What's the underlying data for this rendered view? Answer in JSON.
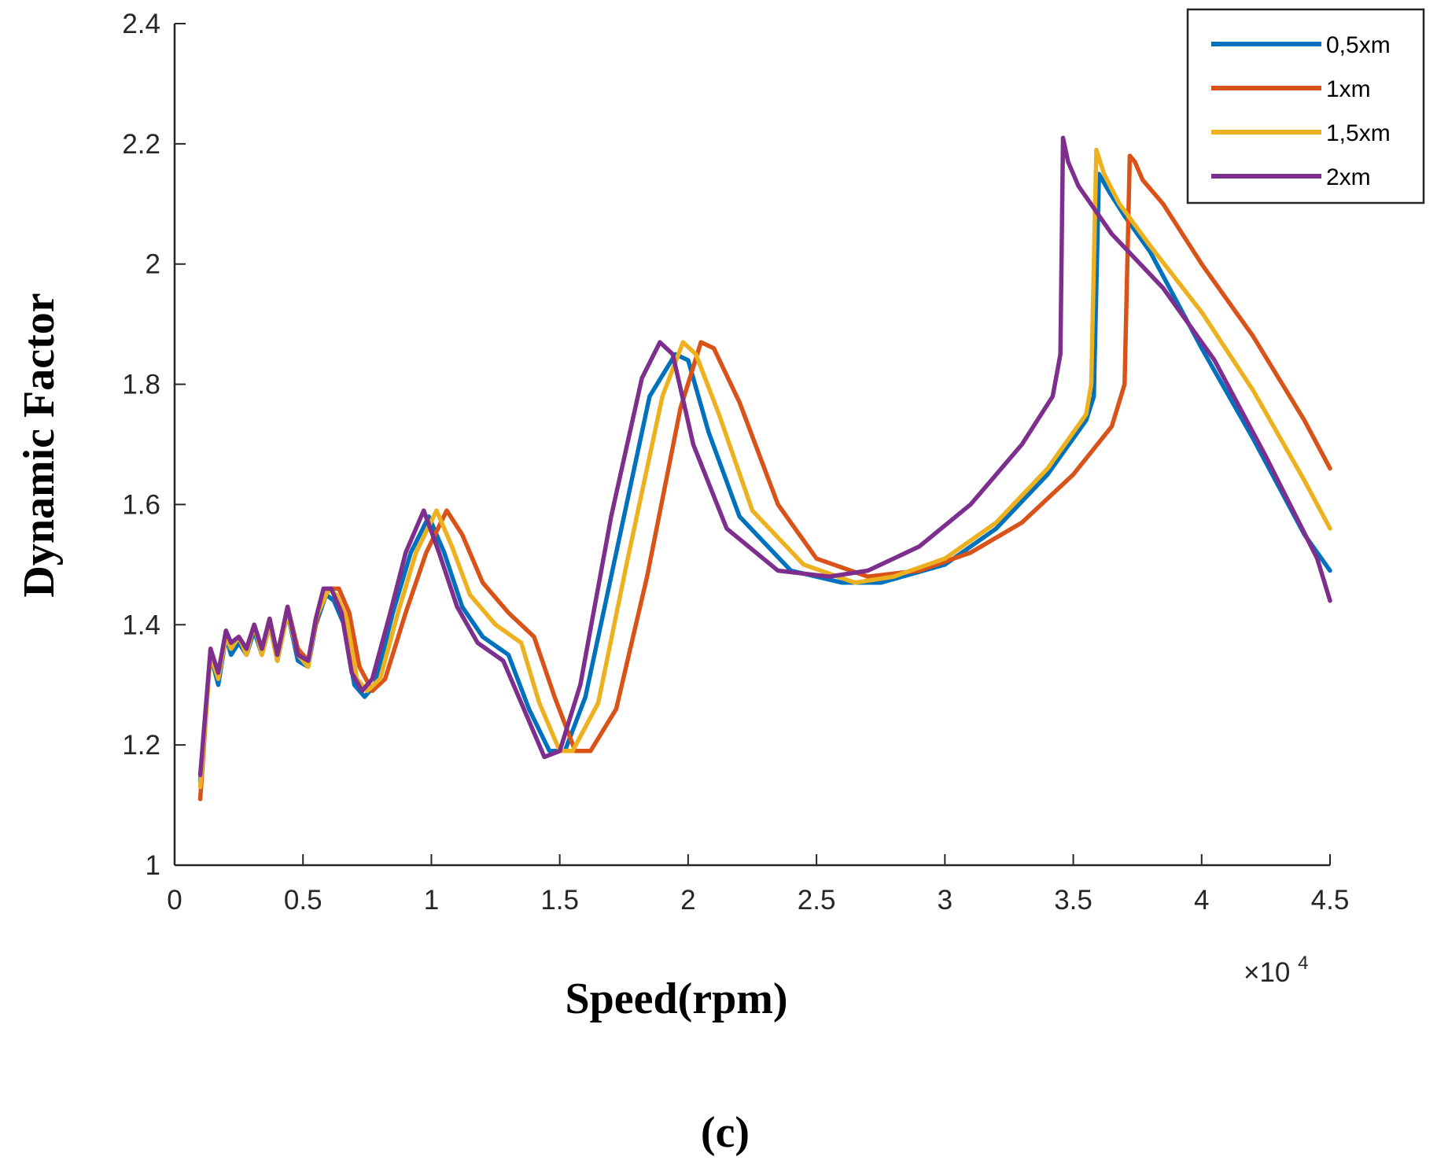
{
  "chart_data": {
    "type": "line",
    "title": "",
    "xlabel": "Speed(rpm)",
    "ylabel": "Dynamic Factor",
    "x_multiplier": "×10",
    "x_multiplier_exp": "4",
    "panel_label": "(c)",
    "xlim": [
      0,
      4.5
    ],
    "ylim": [
      1,
      2.4
    ],
    "xticks": [
      0,
      0.5,
      1,
      1.5,
      2,
      2.5,
      3,
      3.5,
      4,
      4.5
    ],
    "xtick_labels": [
      "0",
      "0.5",
      "1",
      "1.5",
      "2",
      "2.5",
      "3",
      "3.5",
      "4",
      "4.5"
    ],
    "yticks": [
      1,
      1.2,
      1.4,
      1.6,
      1.8,
      2,
      2.2,
      2.4
    ],
    "ytick_labels": [
      "1",
      "1.2",
      "1.4",
      "1.6",
      "1.8",
      "2",
      "2.2",
      "2.4"
    ],
    "grid": false,
    "legend_position": "top-right",
    "series": [
      {
        "name": "0,5xm",
        "color": "#0072BD",
        "x": [
          0.1,
          0.14,
          0.17,
          0.2,
          0.22,
          0.25,
          0.28,
          0.31,
          0.34,
          0.37,
          0.4,
          0.44,
          0.48,
          0.52,
          0.55,
          0.59,
          0.62,
          0.66,
          0.7,
          0.74,
          0.78,
          0.85,
          0.92,
          0.99,
          1.05,
          1.12,
          1.2,
          1.3,
          1.38,
          1.46,
          1.52,
          1.6,
          1.72,
          1.85,
          1.95,
          2.0,
          2.08,
          2.2,
          2.4,
          2.6,
          2.75,
          3.0,
          3.2,
          3.4,
          3.55,
          3.58,
          3.6,
          3.64,
          3.7,
          3.8,
          4.0,
          4.2,
          4.4,
          4.5
        ],
        "y": [
          1.14,
          1.35,
          1.3,
          1.38,
          1.35,
          1.37,
          1.35,
          1.39,
          1.35,
          1.4,
          1.34,
          1.42,
          1.34,
          1.33,
          1.4,
          1.45,
          1.44,
          1.4,
          1.3,
          1.28,
          1.3,
          1.42,
          1.52,
          1.58,
          1.52,
          1.43,
          1.38,
          1.35,
          1.26,
          1.19,
          1.19,
          1.28,
          1.52,
          1.78,
          1.85,
          1.84,
          1.72,
          1.58,
          1.49,
          1.47,
          1.47,
          1.5,
          1.56,
          1.65,
          1.74,
          1.78,
          2.15,
          2.12,
          2.08,
          2.02,
          1.86,
          1.71,
          1.55,
          1.49
        ]
      },
      {
        "name": "1xm",
        "color": "#D95319",
        "x": [
          0.1,
          0.14,
          0.17,
          0.2,
          0.22,
          0.25,
          0.28,
          0.31,
          0.34,
          0.37,
          0.4,
          0.44,
          0.48,
          0.52,
          0.56,
          0.6,
          0.64,
          0.68,
          0.72,
          0.77,
          0.82,
          0.9,
          0.98,
          1.06,
          1.12,
          1.2,
          1.3,
          1.4,
          1.48,
          1.56,
          1.62,
          1.72,
          1.84,
          1.97,
          2.05,
          2.1,
          2.2,
          2.35,
          2.5,
          2.7,
          2.9,
          3.1,
          3.3,
          3.5,
          3.65,
          3.7,
          3.72,
          3.74,
          3.77,
          3.85,
          4.0,
          4.2,
          4.4,
          4.5
        ],
        "y": [
          1.11,
          1.36,
          1.31,
          1.39,
          1.36,
          1.38,
          1.36,
          1.4,
          1.36,
          1.41,
          1.35,
          1.43,
          1.36,
          1.34,
          1.42,
          1.46,
          1.46,
          1.42,
          1.33,
          1.29,
          1.31,
          1.42,
          1.52,
          1.59,
          1.55,
          1.47,
          1.42,
          1.38,
          1.28,
          1.19,
          1.19,
          1.26,
          1.48,
          1.76,
          1.87,
          1.86,
          1.77,
          1.6,
          1.51,
          1.48,
          1.49,
          1.52,
          1.57,
          1.65,
          1.73,
          1.8,
          2.18,
          2.17,
          2.14,
          2.1,
          2.0,
          1.88,
          1.74,
          1.66
        ]
      },
      {
        "name": "1,5xm",
        "color": "#EDB120",
        "x": [
          0.1,
          0.14,
          0.17,
          0.2,
          0.22,
          0.25,
          0.28,
          0.31,
          0.34,
          0.37,
          0.4,
          0.44,
          0.48,
          0.52,
          0.55,
          0.6,
          0.63,
          0.67,
          0.71,
          0.75,
          0.8,
          0.87,
          0.94,
          1.02,
          1.08,
          1.15,
          1.25,
          1.35,
          1.42,
          1.5,
          1.55,
          1.65,
          1.76,
          1.9,
          1.98,
          2.03,
          2.12,
          2.25,
          2.45,
          2.65,
          2.8,
          3.0,
          3.2,
          3.4,
          3.55,
          3.57,
          3.59,
          3.62,
          3.68,
          3.8,
          4.0,
          4.2,
          4.4,
          4.5
        ],
        "y": [
          1.13,
          1.35,
          1.31,
          1.38,
          1.36,
          1.38,
          1.35,
          1.4,
          1.35,
          1.4,
          1.34,
          1.42,
          1.35,
          1.33,
          1.41,
          1.46,
          1.45,
          1.41,
          1.31,
          1.29,
          1.31,
          1.42,
          1.52,
          1.59,
          1.53,
          1.45,
          1.4,
          1.37,
          1.27,
          1.19,
          1.19,
          1.27,
          1.5,
          1.78,
          1.87,
          1.85,
          1.75,
          1.59,
          1.5,
          1.47,
          1.48,
          1.51,
          1.57,
          1.66,
          1.75,
          1.8,
          2.19,
          2.15,
          2.1,
          2.03,
          1.92,
          1.79,
          1.64,
          1.56
        ]
      },
      {
        "name": "2xm",
        "color": "#7E2F8E",
        "x": [
          0.1,
          0.14,
          0.17,
          0.2,
          0.22,
          0.25,
          0.28,
          0.31,
          0.34,
          0.37,
          0.4,
          0.44,
          0.48,
          0.52,
          0.55,
          0.58,
          0.61,
          0.65,
          0.69,
          0.73,
          0.77,
          0.84,
          0.9,
          0.97,
          1.03,
          1.1,
          1.18,
          1.28,
          1.36,
          1.44,
          1.5,
          1.58,
          1.7,
          1.82,
          1.89,
          1.94,
          2.02,
          2.15,
          2.35,
          2.55,
          2.7,
          2.9,
          3.1,
          3.3,
          3.42,
          3.45,
          3.46,
          3.48,
          3.52,
          3.65,
          3.85,
          4.05,
          4.25,
          4.45,
          4.5
        ],
        "y": [
          1.15,
          1.36,
          1.32,
          1.39,
          1.37,
          1.38,
          1.36,
          1.4,
          1.36,
          1.41,
          1.35,
          1.43,
          1.35,
          1.34,
          1.41,
          1.46,
          1.46,
          1.42,
          1.32,
          1.29,
          1.31,
          1.42,
          1.52,
          1.59,
          1.52,
          1.43,
          1.37,
          1.34,
          1.26,
          1.18,
          1.19,
          1.3,
          1.58,
          1.81,
          1.87,
          1.85,
          1.7,
          1.56,
          1.49,
          1.48,
          1.49,
          1.53,
          1.6,
          1.7,
          1.78,
          1.85,
          2.21,
          2.17,
          2.13,
          2.05,
          1.96,
          1.84,
          1.68,
          1.51,
          1.44
        ]
      }
    ]
  }
}
